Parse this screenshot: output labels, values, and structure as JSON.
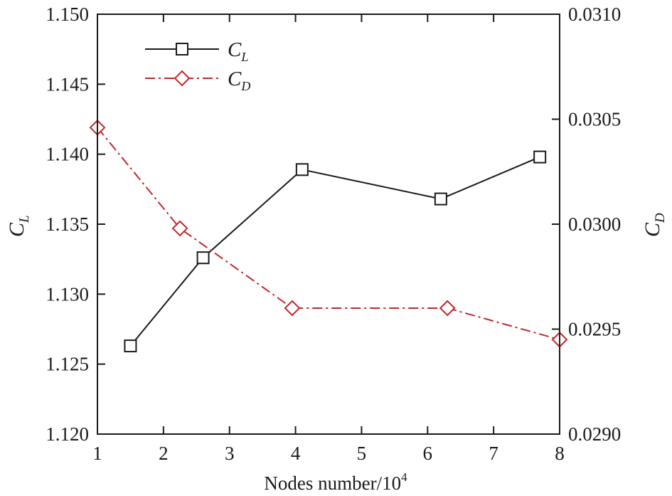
{
  "chart_data": {
    "type": "line",
    "xlabel": "Nodes number/10",
    "xlabel_superscript": "4",
    "ylabel_left": {
      "main": "C",
      "sub": "L"
    },
    "ylabel_right": {
      "main": "C",
      "sub": "D"
    },
    "xlim": [
      1,
      8
    ],
    "ylim_left": [
      1.12,
      1.15
    ],
    "ylim_right": [
      0.029,
      0.031
    ],
    "xticks": [
      "1",
      "2",
      "3",
      "4",
      "5",
      "6",
      "7",
      "8"
    ],
    "yticks_left": [
      "1.120",
      "1.125",
      "1.130",
      "1.135",
      "1.140",
      "1.145",
      "1.150"
    ],
    "yticks_right": [
      "0.0290",
      "0.0295",
      "0.0300",
      "0.0305",
      "0.0310"
    ],
    "grid": false,
    "legend_position": "top-left",
    "series": [
      {
        "name": "C_L",
        "label_main": "C",
        "label_sub": "L",
        "axis": "left",
        "marker": "square",
        "line_style": "solid",
        "color": "#1a1a1a",
        "x": [
          1.5,
          2.6,
          4.1,
          6.2,
          7.7
        ],
        "y": [
          1.1263,
          1.1326,
          1.1389,
          1.1368,
          1.1398
        ]
      },
      {
        "name": "C_D",
        "label_main": "C",
        "label_sub": "D",
        "axis": "right",
        "marker": "diamond",
        "line_style": "dash-dot",
        "color": "#c0282d",
        "x": [
          1.0,
          2.25,
          3.95,
          6.3,
          8.0
        ],
        "y": [
          0.03046,
          0.02998,
          0.0296,
          0.0296,
          0.02945
        ]
      }
    ]
  }
}
